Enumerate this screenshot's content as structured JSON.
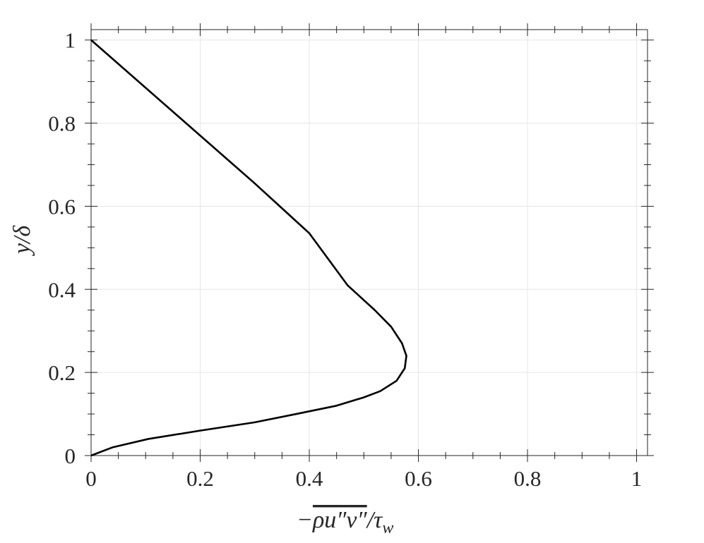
{
  "chart_data": {
    "type": "line",
    "x_label": {
      "prefix": "−",
      "overline": "ρu″v″",
      "suffix": "/τ",
      "subscript": "w"
    },
    "y_label": "y/δ",
    "x": [
      0,
      0.04,
      0.105,
      0.2,
      0.3,
      0.376,
      0.45,
      0.5,
      0.53,
      0.56,
      0.575,
      0.578,
      0.57,
      0.55,
      0.52,
      0.47,
      0.4,
      0.3,
      0.2,
      0.1,
      0
    ],
    "series": [
      {
        "color": "#000000",
        "values": [
          0,
          0.02,
          0.04,
          0.06,
          0.08,
          0.1,
          0.12,
          0.14,
          0.155,
          0.18,
          0.21,
          0.24,
          0.27,
          0.31,
          0.35,
          0.41,
          0.535,
          0.655,
          0.77,
          0.885,
          1
        ]
      }
    ],
    "xlim": [
      0,
      1.02
    ],
    "ylim": [
      0,
      1.025
    ],
    "xticks": [
      0,
      0.2,
      0.4,
      0.6,
      0.8,
      1
    ],
    "yticks": [
      0,
      0.2,
      0.4,
      0.6,
      0.8,
      1
    ],
    "xminor_ticks": [
      0.05,
      0.1,
      0.15,
      0.25,
      0.3,
      0.35,
      0.45,
      0.5,
      0.55,
      0.65,
      0.7,
      0.75,
      0.85,
      0.9,
      0.95
    ],
    "yminor_ticks": [
      0.05,
      0.1,
      0.15,
      0.25,
      0.3,
      0.35,
      0.45,
      0.5,
      0.55,
      0.65,
      0.7,
      0.75,
      0.85,
      0.9,
      0.95
    ],
    "grid": true
  }
}
